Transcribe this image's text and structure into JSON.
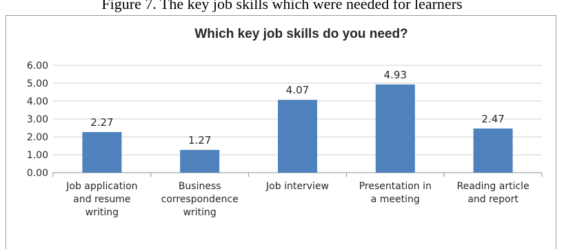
{
  "caption": "Figure 7. The key job skills which were needed for learners",
  "chart_data": {
    "type": "bar",
    "title": "Which key job skills do you need?",
    "categories": [
      [
        "Job application",
        "and resume",
        "writing"
      ],
      [
        "Business",
        "correspondence",
        "writing"
      ],
      [
        "Job interview"
      ],
      [
        "Presentation in",
        "a meeting"
      ],
      [
        "Reading article",
        "and report"
      ]
    ],
    "values": [
      2.27,
      1.27,
      4.07,
      4.93,
      2.47
    ],
    "data_labels": [
      "2.27",
      "1.27",
      "4.07",
      "4.93",
      "2.47"
    ],
    "ylim": [
      0,
      6
    ],
    "yticks": [
      "0.00",
      "1.00",
      "2.00",
      "3.00",
      "4.00",
      "5.00",
      "6.00"
    ],
    "xlabel": "",
    "ylabel": "",
    "grid": true,
    "legend": "none",
    "bar_color": "#4f81bd"
  }
}
